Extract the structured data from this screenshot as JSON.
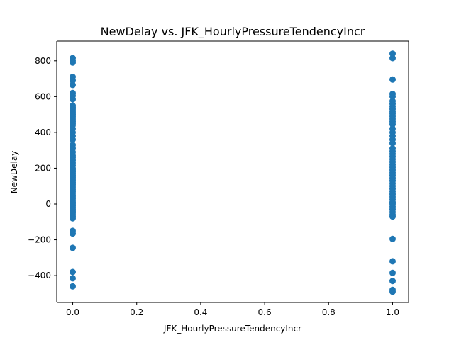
{
  "chart_data": {
    "type": "scatter",
    "title": "NewDelay vs. JFK_HourlyPressureTendencyIncr",
    "xlabel": "JFK_HourlyPressureTendencyIncr",
    "ylabel": "NewDelay",
    "xlim": [
      -0.05,
      1.05
    ],
    "ylim": [
      -550,
      910
    ],
    "xticks": [
      0.0,
      0.2,
      0.4,
      0.6,
      0.8,
      1.0
    ],
    "xtick_labels": [
      "0.0",
      "0.2",
      "0.4",
      "0.6",
      "0.8",
      "1.0"
    ],
    "yticks": [
      -400,
      -200,
      0,
      200,
      400,
      600,
      800
    ],
    "ytick_labels": [
      "−400",
      "−200",
      "0",
      "200",
      "400",
      "600",
      "800"
    ],
    "grid": false,
    "color": "#1f77b4",
    "series": [
      {
        "x": 0.0,
        "values": [
          815,
          800,
          790,
          710,
          690,
          665,
          620,
          605,
          585,
          550,
          540,
          530,
          520,
          510,
          500,
          490,
          480,
          470,
          460,
          450,
          440,
          420,
          400,
          380,
          360,
          330,
          310,
          290,
          270,
          260,
          245,
          230,
          215,
          200,
          190,
          180,
          170,
          160,
          150,
          140,
          130,
          120,
          110,
          100,
          90,
          80,
          70,
          60,
          50,
          40,
          30,
          20,
          10,
          0,
          -10,
          -20,
          -30,
          -40,
          -50,
          -60,
          -70,
          -80,
          -150,
          -165,
          -245,
          -380,
          -415,
          -460
        ]
      },
      {
        "x": 1.0,
        "values": [
          840,
          815,
          695,
          615,
          600,
          575,
          560,
          545,
          530,
          515,
          505,
          490,
          475,
          460,
          445,
          420,
          400,
          380,
          360,
          340,
          310,
          295,
          280,
          265,
          250,
          235,
          220,
          205,
          190,
          175,
          160,
          145,
          130,
          115,
          100,
          85,
          70,
          55,
          40,
          25,
          10,
          0,
          -15,
          -30,
          -45,
          -60,
          -70,
          -195,
          -320,
          -385,
          -430,
          -480,
          -490
        ]
      }
    ]
  }
}
